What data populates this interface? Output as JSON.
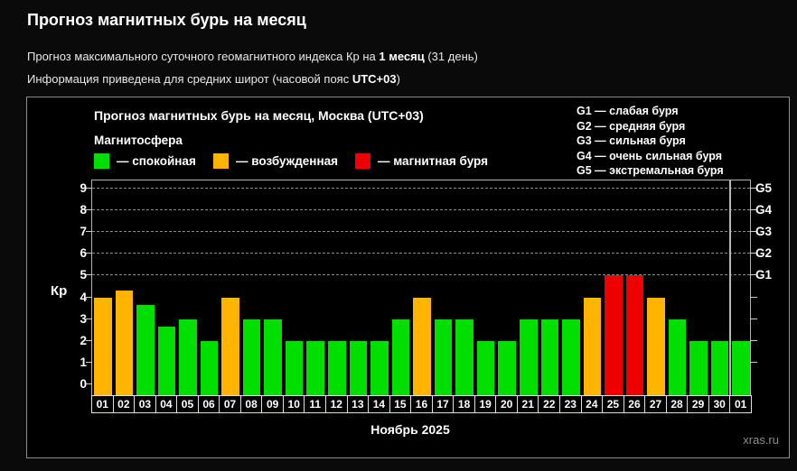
{
  "page": {
    "title": "Прогноз магнитных бурь на месяц",
    "subtitle_prefix": "Прогноз максимального суточного геомагнитного индекса Кр на ",
    "subtitle_bold": "1 месяц",
    "subtitle_suffix": " (31 день)",
    "info_prefix": "Информация приведена для средних широт (часовой пояс ",
    "info_bold": "UTC+03",
    "info_suffix": ")"
  },
  "panel": {
    "chart_title": "Прогноз магнитных бурь на месяц, Москва (UTC+03)",
    "legend_title": "Магнитосфера",
    "legend": [
      {
        "name": "quiet",
        "label": "— спокойная",
        "color": "#00df00"
      },
      {
        "name": "unsettled",
        "label": "— возбужденная",
        "color": "#ffb400"
      },
      {
        "name": "storm",
        "label": "— магнитная буря",
        "color": "#ee0000"
      }
    ],
    "g_legend": [
      "G1 — слабая буря",
      "G2 — средняя буря",
      "G3 — сильная буря",
      "G4 — очень сильная буря",
      "G5 — экстремальная буря"
    ],
    "watermark": "xras.ru"
  },
  "chart_data": {
    "type": "bar",
    "title": "Прогноз магнитных бурь на месяц, Москва (UTC+03)",
    "xlabel": "Ноябрь 2025",
    "ylabel": "Кр",
    "ylim": [
      0,
      9
    ],
    "y_ticks": [
      0,
      1,
      2,
      3,
      4,
      5,
      6,
      7,
      8,
      9
    ],
    "gridlines_at": [
      5,
      6,
      7,
      8,
      9
    ],
    "right_axis_labels": {
      "5": "G1",
      "6": "G2",
      "7": "G3",
      "8": "G4",
      "9": "G5"
    },
    "legend_position": "top",
    "grid": "dashed-horizontal-on-storm-levels",
    "categories": [
      "01",
      "02",
      "03",
      "04",
      "05",
      "06",
      "07",
      "08",
      "09",
      "10",
      "11",
      "12",
      "13",
      "14",
      "15",
      "16",
      "17",
      "18",
      "19",
      "20",
      "21",
      "22",
      "23",
      "24",
      "25",
      "26",
      "27",
      "28",
      "29",
      "30",
      "01"
    ],
    "values": [
      4,
      4.33,
      3.67,
      2.67,
      3,
      2,
      4,
      3,
      3,
      2,
      2,
      2,
      2,
      2,
      3,
      4,
      3,
      3,
      2,
      2,
      3,
      3,
      3,
      4,
      5,
      5,
      4,
      3,
      2,
      2,
      2
    ],
    "color_rule": {
      "storm_min_kp": 5,
      "unsettled_min_kp": 4
    },
    "month_separator_after_index": 29
  }
}
